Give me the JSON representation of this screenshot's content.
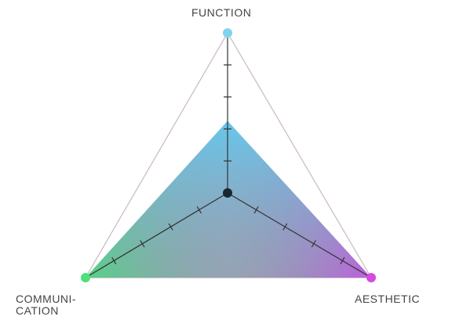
{
  "axes": {
    "function": {
      "label": "FUNCTION",
      "value": 0.45,
      "ticks": 4,
      "color": "#7fd3ec"
    },
    "communication": {
      "label_lines": [
        "COMMUNI-",
        "CATION"
      ],
      "value": 1.0,
      "ticks": 4,
      "color": "#4ee07a"
    },
    "aesthetic": {
      "label": "AESTHETIC",
      "value": 1.0,
      "ticks": 4,
      "color": "#d54ae0"
    }
  },
  "colors": {
    "outline": "#c9b8c2",
    "axis_line": "#333333",
    "center_dot": "#1b2530",
    "fill_top": "#63c9ef",
    "fill_left": "#3be670",
    "fill_right": "#cc44e8"
  }
}
